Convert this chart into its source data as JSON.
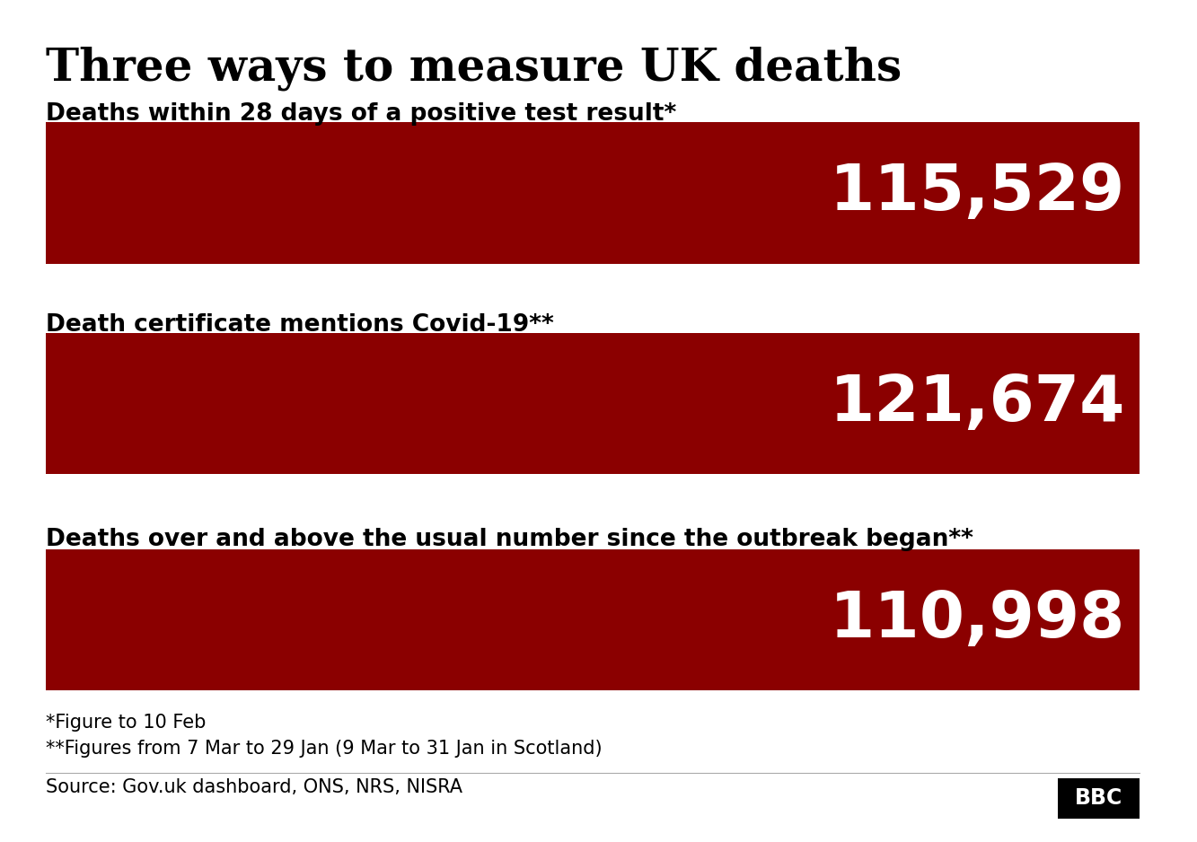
{
  "title": "Three ways to measure UK deaths",
  "background_color": "#ffffff",
  "bar_color": "#8B0000",
  "bars": [
    {
      "label": "Deaths within 28 days of a positive test result*",
      "value": "115,529"
    },
    {
      "label": "Death certificate mentions Covid-19**",
      "value": "121,674"
    },
    {
      "label": "Deaths over and above the usual number since the outbreak began**",
      "value": "110,998"
    }
  ],
  "footnote1": "*Figure to 10 Feb",
  "footnote2": "**Figures from 7 Mar to 29 Jan (9 Mar to 31 Jan in Scotland)",
  "source": "Source: Gov.uk dashboard, ONS, NRS, NISRA",
  "bbc_label": "BBC",
  "title_fontsize": 36,
  "label_fontsize": 19,
  "value_fontsize": 52,
  "footnote_fontsize": 15,
  "source_fontsize": 15
}
